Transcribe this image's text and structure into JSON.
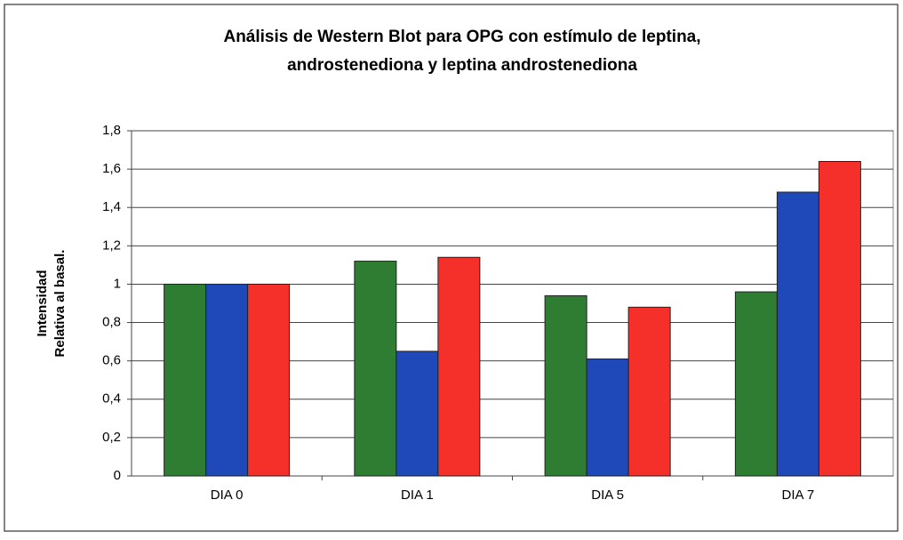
{
  "chart_data": {
    "type": "bar",
    "title": [
      "Análisis de Western Blot para OPG con estímulo de leptina,",
      "androstenediona y leptina androstenediona"
    ],
    "ylabel": [
      "Intensidad",
      "Relativa al basal."
    ],
    "categories": [
      "DIA 0",
      "DIA 1",
      "DIA 5",
      "DIA 7"
    ],
    "series": [
      {
        "color": "#2e7d32",
        "values": [
          1,
          1.12,
          0.94,
          0.96
        ]
      },
      {
        "color": "#1f48b8",
        "values": [
          1,
          0.65,
          0.61,
          1.48
        ]
      },
      {
        "color": "#f5302a",
        "values": [
          1,
          1.14,
          0.88,
          1.64
        ]
      }
    ],
    "ylim": [
      0,
      1.8
    ],
    "yticks": [
      0,
      {
        "value": 0.2,
        "label": "0,2"
      },
      {
        "value": 0.4,
        "label": "0,4"
      },
      {
        "value": 0.6,
        "label": "0,6"
      },
      {
        "value": 0.8,
        "label": "0,8"
      },
      1,
      {
        "value": 1.2,
        "label": "1,2"
      },
      {
        "value": 1.4,
        "label": "1,4"
      },
      {
        "value": 1.6,
        "label": "1,6"
      },
      {
        "value": 1.8,
        "label": "1,8"
      }
    ],
    "grid": true
  }
}
